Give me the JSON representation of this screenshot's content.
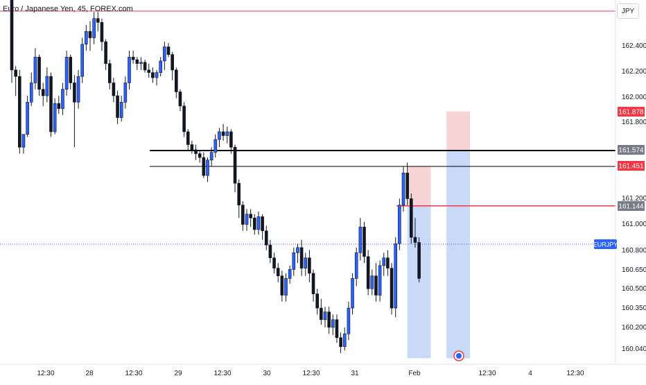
{
  "header": {
    "title": "Euro / Japanese Yen, 45, FOREX.com",
    "currency": "JPY"
  },
  "colors": {
    "bull": "#2962ff",
    "bear": "#131722",
    "support": "#000000",
    "resistance": "#f23645",
    "target_fill": "#b7cdf5",
    "stop_fill": "#f7c5c9",
    "last_price_line": "#2962ff"
  },
  "chart_data": {
    "type": "candlestick",
    "symbol_label": "EURJPY",
    "y_axis": {
      "ticks": [
        "162.400",
        "162.200",
        "162.000",
        "161.800",
        "161.200",
        "161.000",
        "160.800",
        "160.650",
        "160.500",
        "160.350",
        "160.200",
        "160.040"
      ]
    },
    "x_axis": {
      "ticks": [
        "12:30",
        "28",
        "12:30",
        "29",
        "12:30",
        "30",
        "12:30",
        "31",
        "Feb",
        "12:30",
        "4",
        "12:30"
      ]
    },
    "price_labels": [
      {
        "text": "161.878",
        "style": "red"
      },
      {
        "text": "161.574",
        "style": "gray"
      },
      {
        "text": "161.451",
        "style": "red"
      },
      {
        "text": "161.144",
        "style": "gray"
      }
    ],
    "horizontal_lines": [
      {
        "price": 161.574,
        "color": "black",
        "width": 2
      },
      {
        "price": 161.451,
        "color": "black",
        "width": 1
      },
      {
        "price": 161.144,
        "color": "red",
        "width": 1.5
      }
    ],
    "candles": [
      [
        162.8,
        162.8,
        162.1,
        162.2
      ],
      [
        162.2,
        162.23,
        162.0,
        162.15
      ],
      [
        162.15,
        162.2,
        161.55,
        161.6
      ],
      [
        161.6,
        161.68,
        161.55,
        161.7
      ],
      [
        161.7,
        162.0,
        161.68,
        161.95
      ],
      [
        161.95,
        162.18,
        161.92,
        162.1
      ],
      [
        162.1,
        162.37,
        162.05,
        162.3
      ],
      [
        162.3,
        162.32,
        162.0,
        162.05
      ],
      [
        162.05,
        162.1,
        161.92,
        162.0
      ],
      [
        162.0,
        162.22,
        161.95,
        162.15
      ],
      [
        162.15,
        162.18,
        161.68,
        161.72
      ],
      [
        161.72,
        161.98,
        161.7,
        161.94
      ],
      [
        161.94,
        162.0,
        161.86,
        161.9
      ],
      [
        161.9,
        162.1,
        161.85,
        162.05
      ],
      [
        162.05,
        162.35,
        162.0,
        162.3
      ],
      [
        162.3,
        162.32,
        162.05,
        162.1
      ],
      [
        162.1,
        162.16,
        161.6,
        161.95
      ],
      [
        161.95,
        162.2,
        161.9,
        162.15
      ],
      [
        162.15,
        162.45,
        162.1,
        162.4
      ],
      [
        162.4,
        162.55,
        162.35,
        162.5
      ],
      [
        162.5,
        162.58,
        162.35,
        162.45
      ],
      [
        162.45,
        162.65,
        162.4,
        162.6
      ],
      [
        162.6,
        162.65,
        162.5,
        162.57
      ],
      [
        162.57,
        162.6,
        162.35,
        162.42
      ],
      [
        162.42,
        162.44,
        162.2,
        162.25
      ],
      [
        162.25,
        162.28,
        162.05,
        162.1
      ],
      [
        162.1,
        162.14,
        161.95,
        162.0
      ],
      [
        162.0,
        162.04,
        161.78,
        161.83
      ],
      [
        161.83,
        162.0,
        161.8,
        161.95
      ],
      [
        161.95,
        162.15,
        161.9,
        162.1
      ],
      [
        162.1,
        162.35,
        162.05,
        162.3
      ],
      [
        162.3,
        162.35,
        162.25,
        162.28
      ],
      [
        162.28,
        162.3,
        162.2,
        162.25
      ],
      [
        162.25,
        162.3,
        162.2,
        162.26
      ],
      [
        162.26,
        162.28,
        162.18,
        162.2
      ],
      [
        162.2,
        162.25,
        162.14,
        162.18
      ],
      [
        162.18,
        162.22,
        162.1,
        162.14
      ],
      [
        162.14,
        162.2,
        162.08,
        162.18
      ],
      [
        162.18,
        162.3,
        162.15,
        162.27
      ],
      [
        162.27,
        162.42,
        162.2,
        162.38
      ],
      [
        162.38,
        162.41,
        162.3,
        162.32
      ],
      [
        162.32,
        162.34,
        162.12,
        162.2
      ],
      [
        162.2,
        162.22,
        161.98,
        162.03
      ],
      [
        162.03,
        162.05,
        161.88,
        161.92
      ],
      [
        161.92,
        161.95,
        161.68,
        161.72
      ],
      [
        161.72,
        161.74,
        161.58,
        161.62
      ],
      [
        161.62,
        161.65,
        161.55,
        161.58
      ],
      [
        161.58,
        161.62,
        161.5,
        161.55
      ],
      [
        161.55,
        161.58,
        161.48,
        161.52
      ],
      [
        161.52,
        161.56,
        161.36,
        161.38
      ],
      [
        161.38,
        161.52,
        161.33,
        161.5
      ],
      [
        161.5,
        161.6,
        161.45,
        161.56
      ],
      [
        161.56,
        161.7,
        161.52,
        161.66
      ],
      [
        161.66,
        161.75,
        161.6,
        161.72
      ],
      [
        161.72,
        161.78,
        161.65,
        161.69
      ],
      [
        161.69,
        161.76,
        161.63,
        161.72
      ],
      [
        161.72,
        161.74,
        161.55,
        161.6
      ],
      [
        161.6,
        161.62,
        161.25,
        161.32
      ],
      [
        161.32,
        161.35,
        161.05,
        161.15
      ],
      [
        161.15,
        161.18,
        160.95,
        161.0
      ],
      [
        161.0,
        161.12,
        160.95,
        161.08
      ],
      [
        161.08,
        161.12,
        160.98,
        161.05
      ],
      [
        161.05,
        161.08,
        160.92,
        160.96
      ],
      [
        160.96,
        161.1,
        160.92,
        161.06
      ],
      [
        161.06,
        161.08,
        160.88,
        160.95
      ],
      [
        160.95,
        160.99,
        160.8,
        160.84
      ],
      [
        160.84,
        160.88,
        160.7,
        160.74
      ],
      [
        160.74,
        160.78,
        160.62,
        160.66
      ],
      [
        160.66,
        160.7,
        160.55,
        160.6
      ],
      [
        160.6,
        160.64,
        160.4,
        160.45
      ],
      [
        160.45,
        160.62,
        160.4,
        160.58
      ],
      [
        160.58,
        160.68,
        160.54,
        160.65
      ],
      [
        160.65,
        160.82,
        160.6,
        160.78
      ],
      [
        160.78,
        160.85,
        160.7,
        160.82
      ],
      [
        160.82,
        160.88,
        160.6,
        160.66
      ],
      [
        160.66,
        160.78,
        160.6,
        160.74
      ],
      [
        160.74,
        160.8,
        160.55,
        160.62
      ],
      [
        160.62,
        160.65,
        160.4,
        160.46
      ],
      [
        160.46,
        160.5,
        160.3,
        160.35
      ],
      [
        160.35,
        160.42,
        160.22,
        160.26
      ],
      [
        160.26,
        160.36,
        160.2,
        160.32
      ],
      [
        160.32,
        160.36,
        160.15,
        160.2
      ],
      [
        160.2,
        160.3,
        160.14,
        160.26
      ],
      [
        160.26,
        160.3,
        160.08,
        160.12
      ],
      [
        160.12,
        160.16,
        160.0,
        160.05
      ],
      [
        160.05,
        160.2,
        160.02,
        160.15
      ],
      [
        160.15,
        160.4,
        160.1,
        160.35
      ],
      [
        160.35,
        160.62,
        160.3,
        160.58
      ],
      [
        160.58,
        160.82,
        160.52,
        160.78
      ],
      [
        160.78,
        161.05,
        160.72,
        160.98
      ],
      [
        160.98,
        161.02,
        160.7,
        160.75
      ],
      [
        160.75,
        160.8,
        160.45,
        160.5
      ],
      [
        160.5,
        160.65,
        160.45,
        160.6
      ],
      [
        160.6,
        160.7,
        160.4,
        160.45
      ],
      [
        160.45,
        160.72,
        160.4,
        160.68
      ],
      [
        160.68,
        160.78,
        160.6,
        160.74
      ],
      [
        160.74,
        160.8,
        160.6,
        160.66
      ],
      [
        160.66,
        160.7,
        160.3,
        160.35
      ],
      [
        160.35,
        160.9,
        160.28,
        160.85
      ],
      [
        160.85,
        161.2,
        160.8,
        161.15
      ],
      [
        161.15,
        161.45,
        161.1,
        161.4
      ],
      [
        161.4,
        161.48,
        161.15,
        161.2
      ],
      [
        161.2,
        161.24,
        160.85,
        160.9
      ],
      [
        160.9,
        161.05,
        160.82,
        160.86
      ],
      [
        160.86,
        160.9,
        160.55,
        160.58
      ]
    ],
    "boxes": [
      {
        "name": "position-1-stop",
        "from": 101,
        "to": 107,
        "top": 161.451,
        "bottom": 161.144,
        "kind": "stop"
      },
      {
        "name": "position-1-target",
        "from": 101,
        "to": 107,
        "top": 161.144,
        "bottom": 159.96,
        "kind": "target"
      },
      {
        "name": "position-2-stop",
        "from": 111,
        "to": 117,
        "top": 161.878,
        "bottom": 161.574,
        "kind": "stop"
      },
      {
        "name": "position-2-target",
        "from": 111,
        "to": 117,
        "top": 161.574,
        "bottom": 159.96,
        "kind": "target"
      }
    ],
    "y_range": [
      159.96,
      162.8
    ]
  }
}
